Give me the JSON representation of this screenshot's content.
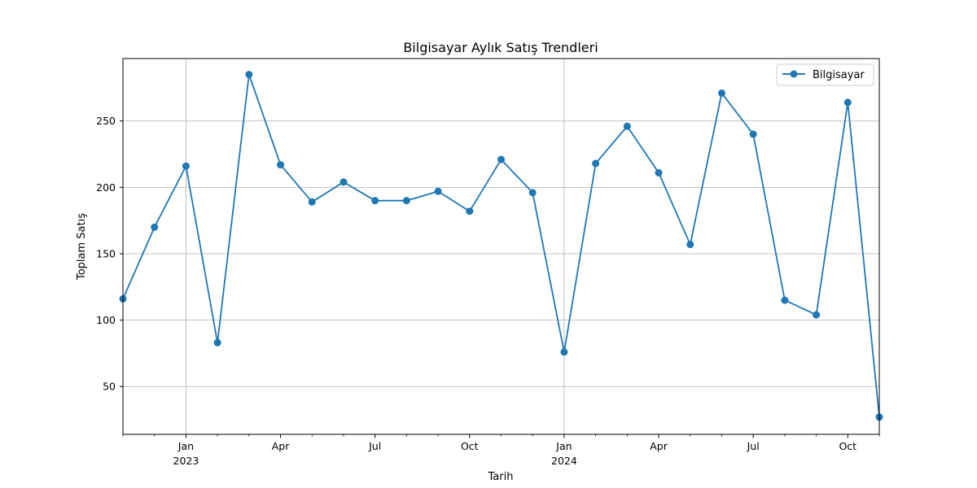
{
  "chart_data": {
    "type": "line",
    "title": "Bilgisayar Aylık Satış Trendleri",
    "xlabel": "Tarih",
    "ylabel": "Toplam Satış",
    "series": [
      {
        "name": "Bilgisayar",
        "color": "#1f77b4",
        "marker": "circle",
        "x": [
          "2022-11",
          "2022-12",
          "2023-01",
          "2023-02",
          "2023-03",
          "2023-04",
          "2023-05",
          "2023-06",
          "2023-07",
          "2023-08",
          "2023-09",
          "2023-10",
          "2023-11",
          "2023-12",
          "2024-01",
          "2024-02",
          "2024-03",
          "2024-04",
          "2024-05",
          "2024-06",
          "2024-07",
          "2024-08",
          "2024-09",
          "2024-10",
          "2024-11"
        ],
        "values": [
          116,
          170,
          216,
          83,
          285,
          217,
          189,
          204,
          190,
          190,
          197,
          182,
          221,
          196,
          76,
          218,
          246,
          211,
          157,
          271,
          240,
          115,
          104,
          264,
          27
        ]
      }
    ],
    "xlim": [
      "2022-11",
      "2024-11"
    ],
    "ylim": [
      14,
      297
    ],
    "yticks": [
      50,
      100,
      150,
      200,
      250
    ],
    "xticks_major": [
      {
        "x": "2023-01",
        "label": "Jan",
        "label2": "2023"
      },
      {
        "x": "2023-04",
        "label": "Apr",
        "label2": ""
      },
      {
        "x": "2023-07",
        "label": "Jul",
        "label2": ""
      },
      {
        "x": "2023-10",
        "label": "Oct",
        "label2": ""
      },
      {
        "x": "2024-01",
        "label": "Jan",
        "label2": "2024"
      },
      {
        "x": "2024-04",
        "label": "Apr",
        "label2": ""
      },
      {
        "x": "2024-07",
        "label": "Jul",
        "label2": ""
      },
      {
        "x": "2024-10",
        "label": "Oct",
        "label2": ""
      }
    ],
    "grid": true,
    "grid_color": "#b0b0b0",
    "vertical_grid_at": [
      "2023-01",
      "2024-01"
    ],
    "legend": {
      "position": "top-right",
      "entries": [
        "Bilgisayar"
      ]
    }
  }
}
